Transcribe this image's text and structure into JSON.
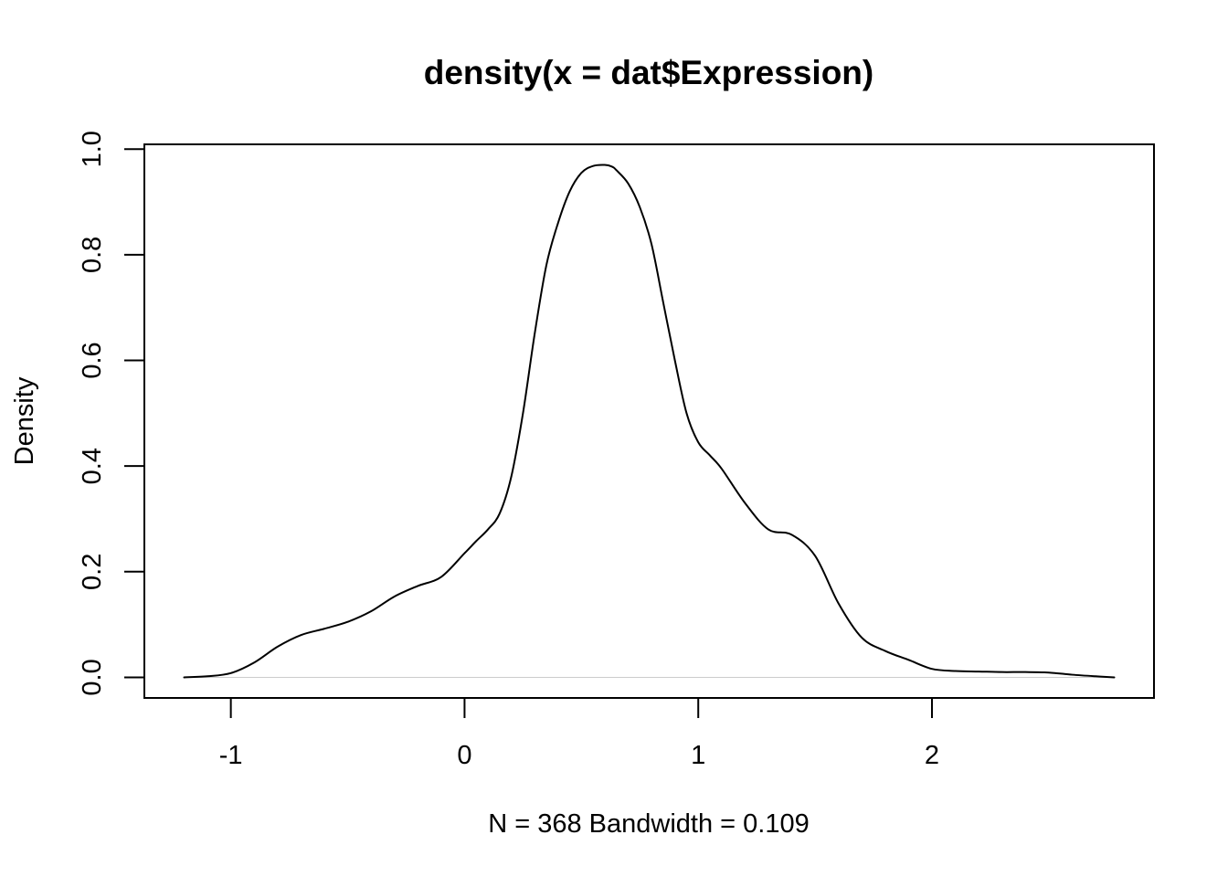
{
  "chart_data": {
    "type": "line",
    "title": "density(x = dat$Expression)",
    "xlabel": "N = 368   Bandwidth = 0.109",
    "ylabel": "Density",
    "xlim": [
      -1.37,
      2.95
    ],
    "ylim": [
      -0.039,
      1.009
    ],
    "x_ticks": [
      -1,
      0,
      1,
      2
    ],
    "x_tick_labels": [
      "-1",
      "0",
      "1",
      "2"
    ],
    "y_ticks": [
      0.0,
      0.2,
      0.4,
      0.6,
      0.8,
      1.0
    ],
    "y_tick_labels": [
      "0.0",
      "0.2",
      "0.4",
      "0.6",
      "0.8",
      "1.0"
    ],
    "grid": false,
    "baseline": {
      "y": 0,
      "color": "#cccccc"
    },
    "line_color": "#000000",
    "series": [
      {
        "x": [
          -1.2,
          -1.1,
          -1.0,
          -0.9,
          -0.8,
          -0.7,
          -0.6,
          -0.5,
          -0.4,
          -0.3,
          -0.2,
          -0.1,
          0.0,
          0.05,
          0.1,
          0.15,
          0.2,
          0.25,
          0.3,
          0.35,
          0.4,
          0.45,
          0.5,
          0.55,
          0.6,
          0.63,
          0.65,
          0.7,
          0.75,
          0.8,
          0.85,
          0.9,
          0.95,
          1.0,
          1.05,
          1.1,
          1.2,
          1.3,
          1.4,
          1.5,
          1.6,
          1.7,
          1.8,
          1.9,
          2.0,
          2.1,
          2.2,
          2.3,
          2.4,
          2.5,
          2.6,
          2.7,
          2.78
        ],
        "y": [
          0.0,
          0.002,
          0.008,
          0.028,
          0.058,
          0.08,
          0.092,
          0.105,
          0.125,
          0.153,
          0.173,
          0.19,
          0.235,
          0.258,
          0.28,
          0.31,
          0.38,
          0.5,
          0.65,
          0.78,
          0.86,
          0.92,
          0.955,
          0.968,
          0.97,
          0.967,
          0.96,
          0.935,
          0.89,
          0.82,
          0.71,
          0.6,
          0.5,
          0.445,
          0.42,
          0.395,
          0.33,
          0.28,
          0.27,
          0.23,
          0.14,
          0.075,
          0.05,
          0.033,
          0.016,
          0.012,
          0.011,
          0.01,
          0.01,
          0.009,
          0.005,
          0.002,
          0.0
        ]
      }
    ]
  }
}
